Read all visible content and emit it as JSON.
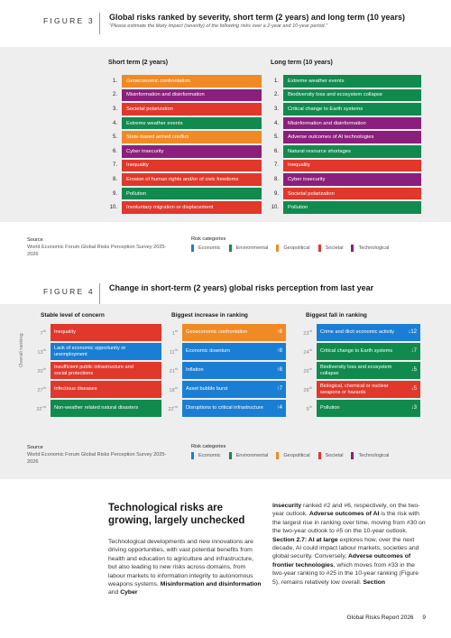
{
  "colors": {
    "economic": "#1a7fd4",
    "environmental": "#118a4e",
    "geopolitical": "#f08a24",
    "societal": "#e0382b",
    "technological": "#8b1f7d"
  },
  "figure3": {
    "label": "FIGURE 3",
    "title": "Global risks ranked by severity, short term (2 years) and long term (10 years)",
    "subtitle": "\"Please estimate the likely impact (severity) of the following risks over a 2-year and 10-year period.\"",
    "short_term_title": "Short term (2 years)",
    "long_term_title": "Long term (10 years)",
    "short_term": [
      {
        "rank": "1.",
        "label": "Geoeconomic confrontation",
        "category": "geopolitical"
      },
      {
        "rank": "2.",
        "label": "Misinformation and disinformation",
        "category": "technological"
      },
      {
        "rank": "3.",
        "label": "Societal polarization",
        "category": "societal"
      },
      {
        "rank": "4.",
        "label": "Extreme weather events",
        "category": "environmental"
      },
      {
        "rank": "5.",
        "label": "State-based armed conflict",
        "category": "geopolitical"
      },
      {
        "rank": "6.",
        "label": "Cyber insecurity",
        "category": "technological"
      },
      {
        "rank": "7.",
        "label": "Inequality",
        "category": "societal"
      },
      {
        "rank": "8.",
        "label": "Erosion of human rights and/or of civic freedoms",
        "category": "societal"
      },
      {
        "rank": "9.",
        "label": "Pollution",
        "category": "environmental"
      },
      {
        "rank": "10.",
        "label": "Involuntary migration or displacement",
        "category": "societal"
      }
    ],
    "long_term": [
      {
        "rank": "1.",
        "label": "Extreme weather events",
        "category": "environmental"
      },
      {
        "rank": "2.",
        "label": "Biodiversity loss and ecosystem collapse",
        "category": "environmental"
      },
      {
        "rank": "3.",
        "label": "Critical change to Earth systems",
        "category": "environmental"
      },
      {
        "rank": "4.",
        "label": "Misinformation and disinformation",
        "category": "technological"
      },
      {
        "rank": "5.",
        "label": "Adverse outcomes of AI technologies",
        "category": "technological"
      },
      {
        "rank": "6.",
        "label": "Natural resource shortages",
        "category": "environmental"
      },
      {
        "rank": "7.",
        "label": "Inequality",
        "category": "societal"
      },
      {
        "rank": "8.",
        "label": "Cyber insecurity",
        "category": "technological"
      },
      {
        "rank": "9.",
        "label": "Societal polarization",
        "category": "societal"
      },
      {
        "rank": "10.",
        "label": "Pollution",
        "category": "environmental"
      }
    ],
    "source_label": "Source",
    "source_text": "World Economic Forum Global Risks Perception Survey 2025-2026"
  },
  "legend": {
    "title": "Risk categories",
    "items": [
      {
        "key": "economic",
        "label": "Economic"
      },
      {
        "key": "environmental",
        "label": "Environmental"
      },
      {
        "key": "geopolitical",
        "label": "Geopolitical"
      },
      {
        "key": "societal",
        "label": "Societal"
      },
      {
        "key": "technological",
        "label": "Technological"
      }
    ]
  },
  "figure4": {
    "label": "FIGURE 4",
    "title": "Change in short-term (2 years) global risks perception from last year",
    "axis_label": "Overall ranking",
    "stable_title": "Stable level of concern",
    "increase_title": "Biggest increase in ranking",
    "fall_title": "Biggest fall in ranking",
    "stable": [
      {
        "rank": "7",
        "sup": "th",
        "label": "Inequality",
        "category": "societal"
      },
      {
        "rank": "13",
        "sup": "th",
        "label": "Lack of economic opportunity or unemployment",
        "category": "economic"
      },
      {
        "rank": "20",
        "sup": "th",
        "label": "Insufficient public infrastructure and social protections",
        "category": "societal"
      },
      {
        "rank": "27",
        "sup": "th",
        "label": "Infectious diseases",
        "category": "societal"
      },
      {
        "rank": "32",
        "sup": "nd",
        "label": "Non-weather related natural disasters",
        "category": "environmental"
      }
    ],
    "increase": [
      {
        "rank": "1",
        "sup": "st",
        "label": "Geoeconomic confrontation",
        "change": "↑8",
        "category": "geopolitical"
      },
      {
        "rank": "11",
        "sup": "th",
        "label": "Economic downturn",
        "change": "↑8",
        "category": "economic"
      },
      {
        "rank": "21",
        "sup": "st",
        "label": "Inflation",
        "change": "↑8",
        "category": "economic"
      },
      {
        "rank": "18",
        "sup": "th",
        "label": "Asset bubble burst",
        "change": "↑7",
        "category": "economic"
      },
      {
        "rank": "22",
        "sup": "nd",
        "label": "Disruptions to critical infrastructure",
        "change": "↑4",
        "category": "economic"
      }
    ],
    "fall": [
      {
        "rank": "23",
        "sup": "rd",
        "label": "Crime and illicit economic activity",
        "change": "↓12",
        "category": "economic"
      },
      {
        "rank": "24",
        "sup": "th",
        "label": "Critical change to Earth systems",
        "change": "↓7",
        "category": "environmental"
      },
      {
        "rank": "26",
        "sup": "th",
        "label": "Biodiversity loss and ecosystem collapse",
        "change": "↓5",
        "category": "environmental"
      },
      {
        "rank": "28",
        "sup": "th",
        "label": "Biological, chemical or nuclear weapons or hazards",
        "change": "↓5",
        "category": "societal"
      },
      {
        "rank": "9",
        "sup": "th",
        "label": "Pollution",
        "change": "↓3",
        "category": "environmental"
      }
    ],
    "source_label": "Source",
    "source_text": "World Economic Forum Global Risks Perception Survey 2025-2026"
  },
  "article": {
    "title": "Technological risks are growing, largely unchecked",
    "left_paragraph": [
      {
        "t": "Technological developments and new innovations are driving opportunities, with vast potential benefits from health and education to agriculture and infrastructure, but also leading to new risks across domains, from labour markets to information integrity to autonomous weapons systems. ",
        "b": false
      },
      {
        "t": "Misinformation and disinformation",
        "b": true
      },
      {
        "t": " and ",
        "b": false
      },
      {
        "t": "Cyber",
        "b": true
      }
    ],
    "right_paragraph": [
      {
        "t": "insecurity",
        "b": true
      },
      {
        "t": " ranked #2 and #6, respectively, on the two-year outlook. ",
        "b": false
      },
      {
        "t": "Adverse outcomes of AI",
        "b": true
      },
      {
        "t": " is the risk with the largest rise in ranking over time, moving from #30 on the two-year outlook to #5 on the 10-year outlook. ",
        "b": false
      },
      {
        "t": "Section 2.7: AI at large",
        "b": true
      },
      {
        "t": " explores how, over the next decade, AI could impact labour markets, societies and global security. Conversely, ",
        "b": false
      },
      {
        "t": "Adverse outcomes of frontier technologies",
        "b": true
      },
      {
        "t": ", which moves from #33 in the two-year ranking to #25 in the 10-year ranking (Figure 5), remains relatively low overall. ",
        "b": false
      },
      {
        "t": "Section",
        "b": true
      }
    ]
  },
  "footer": {
    "report": "Global Risks Report 2026",
    "page": "9"
  }
}
